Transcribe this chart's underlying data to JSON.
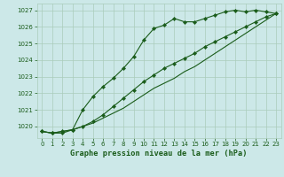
{
  "title": "Graphe pression niveau de la mer (hPa)",
  "bg_color": "#cce8e8",
  "grid_color": "#aaccbb",
  "line_color": "#1a5c1a",
  "marker": "D",
  "marker_size": 2.2,
  "linewidth": 0.8,
  "xlim": [
    -0.5,
    23.5
  ],
  "ylim": [
    1019.3,
    1027.4
  ],
  "yticks": [
    1020,
    1021,
    1022,
    1023,
    1024,
    1025,
    1026,
    1027
  ],
  "xticks": [
    0,
    1,
    2,
    3,
    4,
    5,
    6,
    7,
    8,
    9,
    10,
    11,
    12,
    13,
    14,
    15,
    16,
    17,
    18,
    19,
    20,
    21,
    22,
    23
  ],
  "tick_fontsize": 5.0,
  "xlabel_fontsize": 6.2,
  "line1_x": [
    0,
    1,
    2,
    3,
    4,
    5,
    6,
    7,
    8,
    9,
    10,
    11,
    12,
    13,
    14,
    15,
    16,
    17,
    18,
    19,
    20,
    21,
    22,
    23
  ],
  "line1_y": [
    1019.7,
    1019.6,
    1019.6,
    1019.8,
    1021.0,
    1021.8,
    1022.4,
    1022.9,
    1023.5,
    1024.2,
    1025.2,
    1025.9,
    1026.1,
    1026.5,
    1026.3,
    1026.3,
    1026.5,
    1026.7,
    1026.9,
    1027.0,
    1026.9,
    1027.0,
    1026.9,
    1026.8
  ],
  "line2_x": [
    0,
    1,
    2,
    3,
    4,
    5,
    6,
    7,
    8,
    9,
    10,
    11,
    12,
    13,
    14,
    15,
    16,
    17,
    18,
    19,
    20,
    21,
    22,
    23
  ],
  "line2_y": [
    1019.7,
    1019.6,
    1019.7,
    1019.8,
    1020.0,
    1020.3,
    1020.7,
    1021.2,
    1021.7,
    1022.2,
    1022.7,
    1023.1,
    1023.5,
    1023.8,
    1024.1,
    1024.4,
    1024.8,
    1025.1,
    1025.4,
    1025.7,
    1026.0,
    1026.3,
    1026.6,
    1026.8
  ],
  "line3_x": [
    0,
    1,
    2,
    3,
    4,
    5,
    6,
    7,
    8,
    9,
    10,
    11,
    12,
    13,
    14,
    15,
    16,
    17,
    18,
    19,
    20,
    21,
    22,
    23
  ],
  "line3_y": [
    1019.7,
    1019.6,
    1019.7,
    1019.8,
    1020.0,
    1020.2,
    1020.5,
    1020.8,
    1021.1,
    1021.5,
    1021.9,
    1022.3,
    1022.6,
    1022.9,
    1023.3,
    1023.6,
    1024.0,
    1024.4,
    1024.8,
    1025.2,
    1025.6,
    1026.0,
    1026.4,
    1026.8
  ]
}
